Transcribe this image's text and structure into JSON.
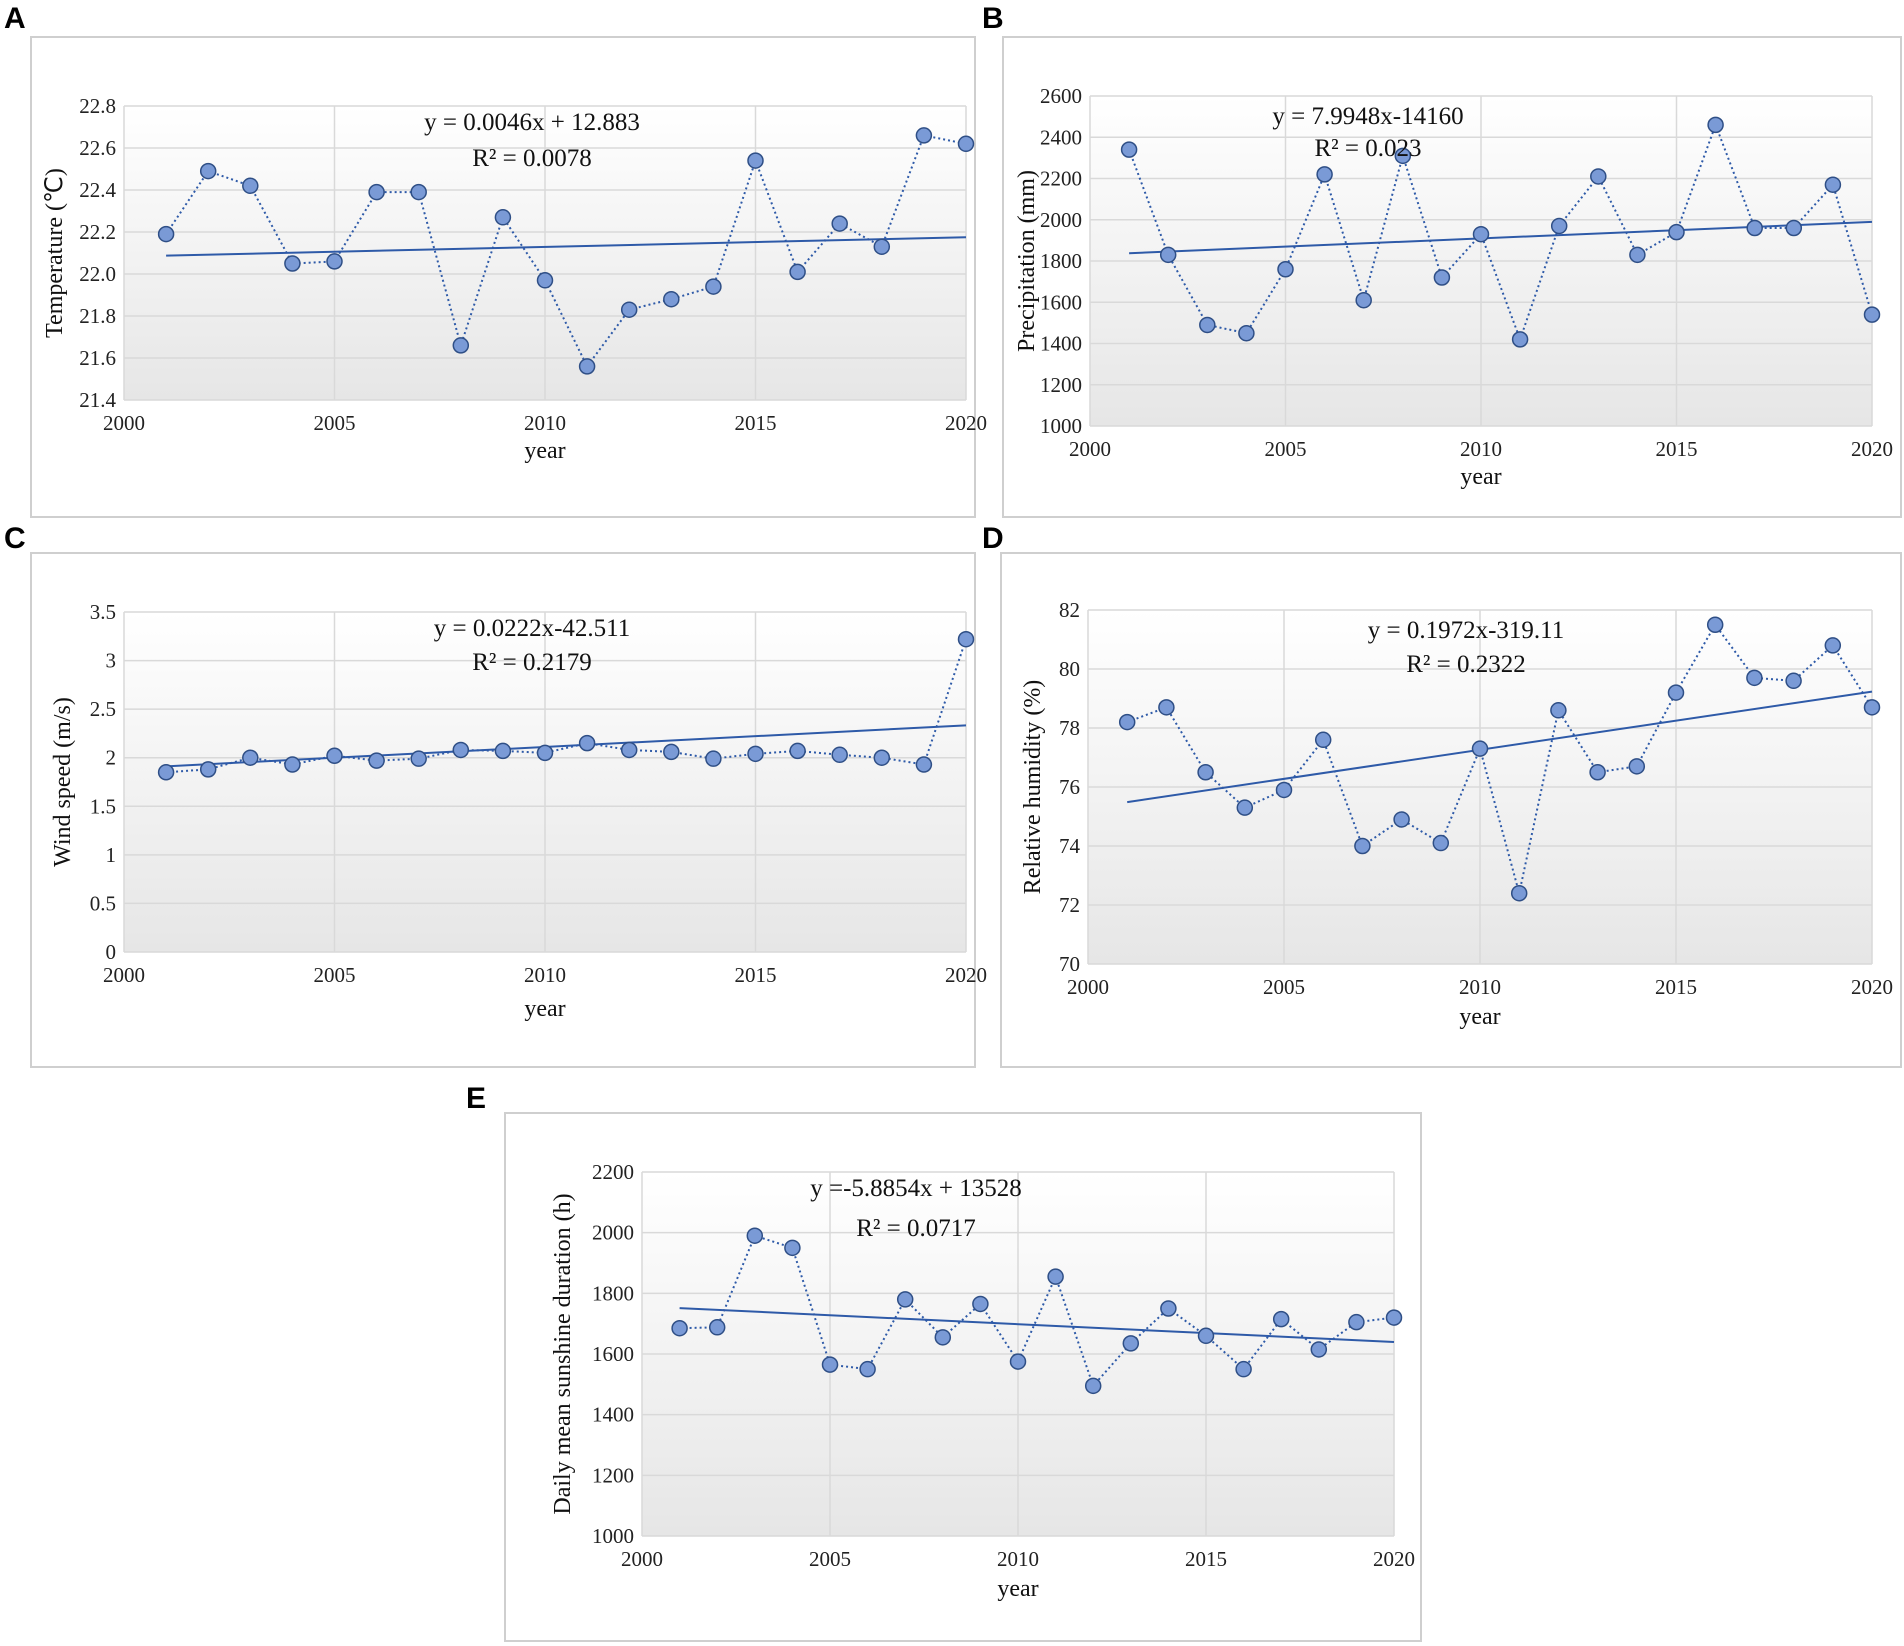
{
  "chart_data": [
    {
      "panel": "A",
      "type": "line",
      "xlabel": "year",
      "ylabel": "Temperature (℃)",
      "xlim": [
        2000,
        2020
      ],
      "ylim": [
        21.4,
        22.8
      ],
      "xticks": [
        2000,
        2005,
        2010,
        2015,
        2020
      ],
      "yticks": [
        21.4,
        21.6,
        21.8,
        22.0,
        22.2,
        22.4,
        22.6,
        22.8
      ],
      "yticklabels": [
        "21.4",
        "21.6",
        "21.8",
        "22.0",
        "22.2",
        "22.4",
        "22.6",
        "22.8"
      ],
      "equation": "y = 0.0046x + 12.883",
      "r2": "R² = 0.0078",
      "trend": {
        "slope": 0.0046,
        "intercept": 12.883
      },
      "x": [
        2001,
        2002,
        2003,
        2004,
        2005,
        2006,
        2007,
        2008,
        2009,
        2010,
        2011,
        2012,
        2013,
        2014,
        2015,
        2016,
        2017,
        2018,
        2019,
        2020
      ],
      "values": [
        22.19,
        22.49,
        22.42,
        22.05,
        22.06,
        22.39,
        22.39,
        21.66,
        22.27,
        21.97,
        21.56,
        21.83,
        21.88,
        21.94,
        22.54,
        22.01,
        22.24,
        22.13,
        22.66,
        22.62
      ]
    },
    {
      "panel": "B",
      "type": "line",
      "xlabel": "year",
      "ylabel": "Precipitation (mm)",
      "xlim": [
        2000,
        2020
      ],
      "ylim": [
        1000,
        2600
      ],
      "xticks": [
        2000,
        2005,
        2010,
        2015,
        2020
      ],
      "yticks": [
        1000,
        1200,
        1400,
        1600,
        1800,
        2000,
        2200,
        2400,
        2600
      ],
      "yticklabels": [
        "1000",
        "1200",
        "1400",
        "1600",
        "1800",
        "2000",
        "2200",
        "2400",
        "2600"
      ],
      "equation": "y = 7.9948x-14160",
      "r2": "R² = 0.023",
      "trend": {
        "slope": 7.9948,
        "intercept": -14160
      },
      "x": [
        2001,
        2002,
        2003,
        2004,
        2005,
        2006,
        2007,
        2008,
        2009,
        2010,
        2011,
        2012,
        2013,
        2014,
        2015,
        2016,
        2017,
        2018,
        2019,
        2020
      ],
      "values": [
        2340,
        1830,
        1490,
        1450,
        1760,
        2220,
        1610,
        2310,
        1720,
        1930,
        1420,
        1970,
        2210,
        1830,
        1940,
        2460,
        1960,
        1960,
        2170,
        1540
      ]
    },
    {
      "panel": "C",
      "type": "line",
      "xlabel": "year",
      "ylabel": "Wind speed (m/s)",
      "xlim": [
        2000,
        2020
      ],
      "ylim": [
        0,
        3.5
      ],
      "xticks": [
        2000,
        2005,
        2010,
        2015,
        2020
      ],
      "yticks": [
        0,
        0.5,
        1,
        1.5,
        2,
        2.5,
        3,
        3.5
      ],
      "yticklabels": [
        "0",
        "0.5",
        "1",
        "1.5",
        "2",
        "2.5",
        "3",
        "3.5"
      ],
      "equation": "y = 0.0222x-42.511",
      "r2": "R² = 0.2179",
      "trend": {
        "slope": 0.0222,
        "intercept": -42.511
      },
      "x": [
        2001,
        2002,
        2003,
        2004,
        2005,
        2006,
        2007,
        2008,
        2009,
        2010,
        2011,
        2012,
        2013,
        2014,
        2015,
        2016,
        2017,
        2018,
        2019,
        2020
      ],
      "values": [
        1.85,
        1.88,
        2.0,
        1.93,
        2.02,
        1.97,
        1.99,
        2.08,
        2.07,
        2.05,
        2.15,
        2.08,
        2.06,
        1.99,
        2.04,
        2.07,
        2.03,
        2.0,
        1.93,
        3.22
      ]
    },
    {
      "panel": "D",
      "type": "line",
      "xlabel": "year",
      "ylabel": "Relative humidity (%)",
      "xlim": [
        2000,
        2020
      ],
      "ylim": [
        70,
        82
      ],
      "xticks": [
        2000,
        2005,
        2010,
        2015,
        2020
      ],
      "yticks": [
        70,
        72,
        74,
        76,
        78,
        80,
        82
      ],
      "yticklabels": [
        "70",
        "72",
        "74",
        "76",
        "78",
        "80",
        "82"
      ],
      "equation": "y = 0.1972x-319.11",
      "r2": "R² = 0.2322",
      "trend": {
        "slope": 0.1972,
        "intercept": -319.11
      },
      "x": [
        2001,
        2002,
        2003,
        2004,
        2005,
        2006,
        2007,
        2008,
        2009,
        2010,
        2011,
        2012,
        2013,
        2014,
        2015,
        2016,
        2017,
        2018,
        2019,
        2020
      ],
      "values": [
        78.2,
        78.7,
        76.5,
        75.3,
        75.9,
        77.6,
        74.0,
        74.9,
        74.1,
        77.3,
        72.4,
        78.6,
        76.5,
        76.7,
        79.2,
        81.5,
        79.7,
        79.6,
        80.8,
        78.7
      ]
    },
    {
      "panel": "E",
      "type": "line",
      "xlabel": "year",
      "ylabel": "Daily mean sunshine duration (h)",
      "xlim": [
        2000,
        2020
      ],
      "ylim": [
        1000,
        2200
      ],
      "xticks": [
        2000,
        2005,
        2010,
        2015,
        2020
      ],
      "yticks": [
        1000,
        1200,
        1400,
        1600,
        1800,
        2000,
        2200
      ],
      "yticklabels": [
        "1000",
        "1200",
        "1400",
        "1600",
        "1800",
        "2000",
        "2200"
      ],
      "equation": "y =-5.8854x + 13528",
      "r2": "R² = 0.0717",
      "trend": {
        "slope": -5.8854,
        "intercept": 13528
      },
      "x": [
        2001,
        2002,
        2003,
        2004,
        2005,
        2006,
        2007,
        2008,
        2009,
        2010,
        2011,
        2012,
        2013,
        2014,
        2015,
        2016,
        2017,
        2018,
        2019,
        2020
      ],
      "values": [
        1685,
        1688,
        1990,
        1950,
        1565,
        1550,
        1780,
        1655,
        1765,
        1575,
        1855,
        1495,
        1635,
        1750,
        1660,
        1550,
        1715,
        1615,
        1705,
        1720
      ]
    }
  ],
  "colors": {
    "line": "#2e5aa8",
    "marker_fill": "#7a9ad6",
    "marker_stroke": "#2f4f86",
    "grid": "#d9d9d9",
    "plot_top": "#ffffff",
    "plot_bottom": "#e6e6e6"
  }
}
